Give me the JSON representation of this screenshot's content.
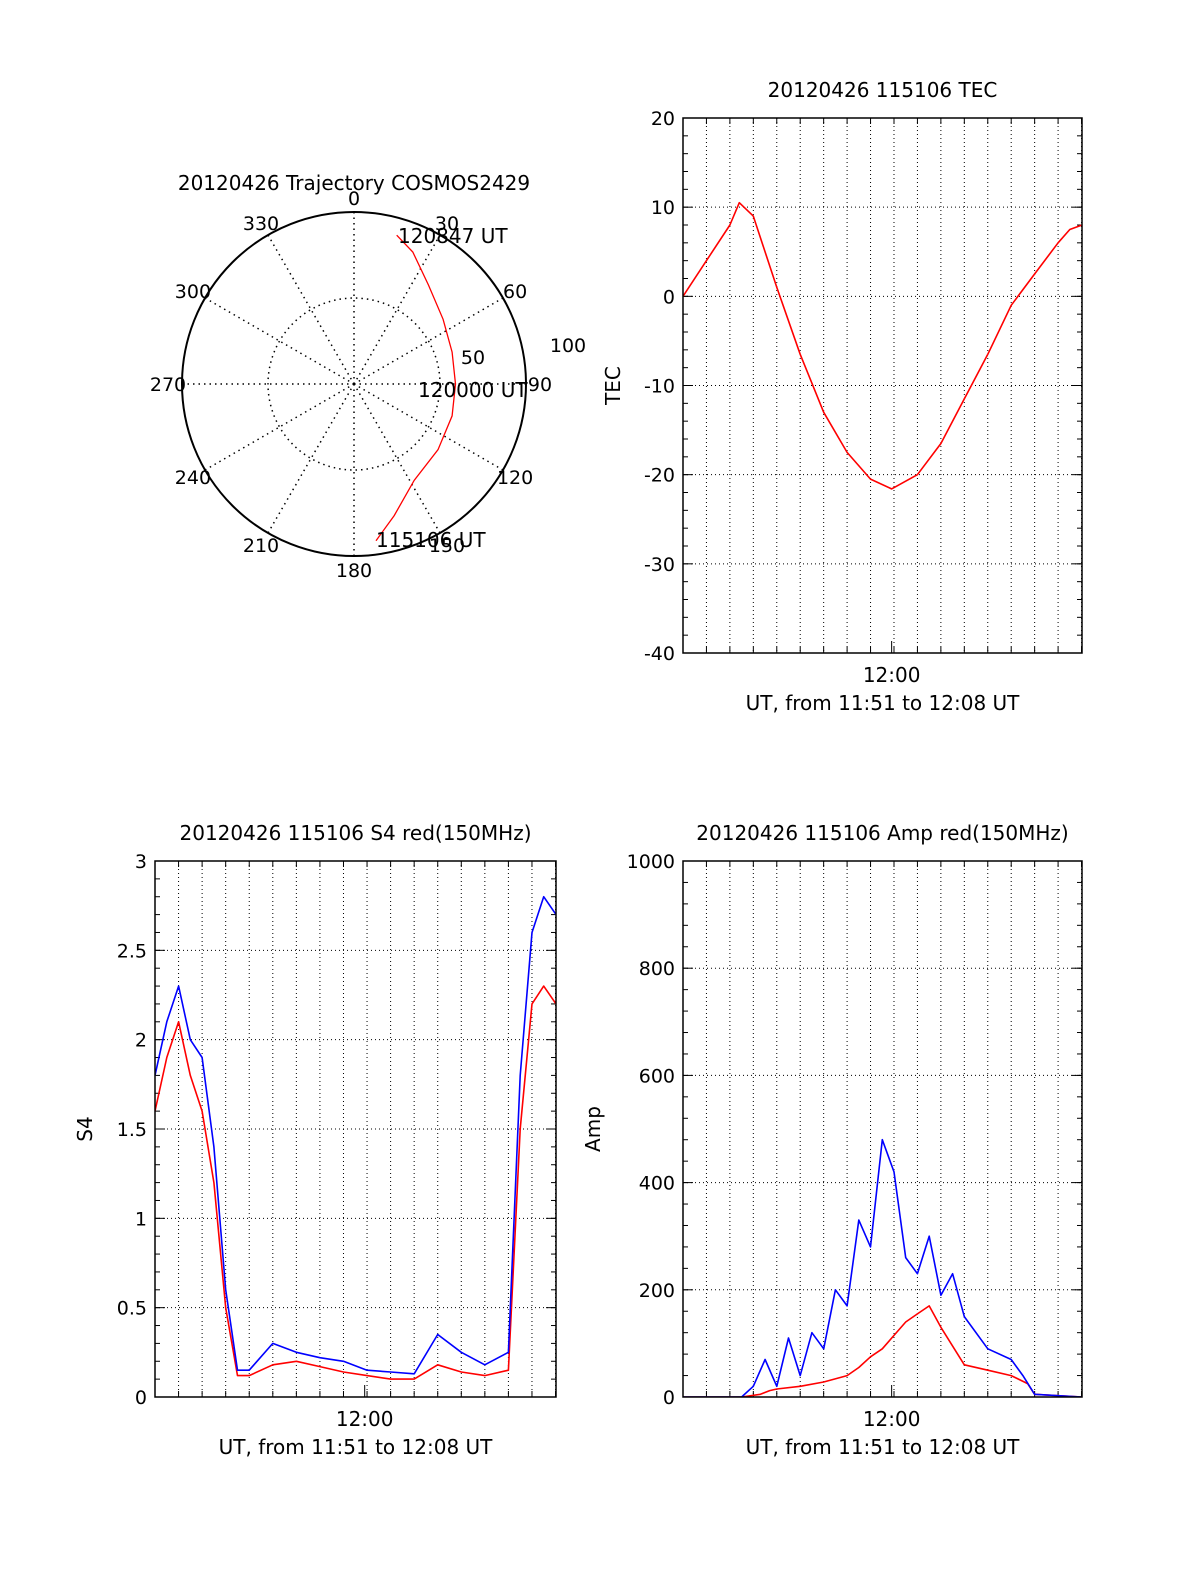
{
  "colors": {
    "red": "#ff0000",
    "blue": "#0000ff",
    "axis": "#000000",
    "grid": "#000000",
    "background": "#ffffff"
  },
  "polar": {
    "title": "20120426 Trajectory COSMOS2429",
    "azimuth_labels": [
      "0",
      "30",
      "60",
      "90",
      "120",
      "150",
      "180",
      "210",
      "240",
      "270",
      "300",
      "330"
    ],
    "radius_labels": [
      "50",
      "100"
    ],
    "time_labels": {
      "start": "115106 UT",
      "middle": "120000 UT",
      "end": "120847 UT"
    }
  },
  "chart_data": [
    {
      "type": "polar",
      "title": "20120426 Trajectory COSMOS2429",
      "r_max": 100,
      "rings": [
        50,
        100
      ],
      "spokes_deg": [
        0,
        30,
        60,
        90,
        120,
        150,
        180,
        210,
        240,
        270,
        300,
        330
      ],
      "series": [
        {
          "color": "red",
          "points": [
            {
              "azimuth": 172,
              "zenith": 92
            },
            {
              "azimuth": 163,
              "zenith": 80
            },
            {
              "azimuth": 148,
              "zenith": 66
            },
            {
              "azimuth": 128,
              "zenith": 62
            },
            {
              "azimuth": 108,
              "zenith": 60
            },
            {
              "azimuth": 90,
              "zenith": 59
            },
            {
              "azimuth": 72,
              "zenith": 60
            },
            {
              "azimuth": 54,
              "zenith": 64
            },
            {
              "azimuth": 37,
              "zenith": 72
            },
            {
              "azimuth": 24,
              "zenith": 84
            },
            {
              "azimuth": 16,
              "zenith": 90
            }
          ]
        }
      ]
    },
    {
      "type": "line",
      "title": "20120426 115106 TEC",
      "ylabel": "TEC",
      "xlabel": "UT, from 11:51 to 12:08 UT",
      "xtick_label": "12:00",
      "xlim": [
        0,
        17.02
      ],
      "ylim": [
        -40,
        20
      ],
      "yticks": [
        20,
        10,
        0,
        -10,
        -20,
        -30,
        -40
      ],
      "grid": true,
      "series": [
        {
          "color": "red",
          "x": [
            0,
            1,
            2,
            2.4,
            3,
            4,
            5,
            6,
            7,
            8,
            8.9,
            10,
            11,
            12,
            13,
            14,
            15,
            16,
            16.5,
            17.02
          ],
          "y": [
            0,
            4,
            8,
            10.5,
            9,
            1,
            -6.5,
            -13,
            -17.5,
            -20.5,
            -21.6,
            -20,
            -16.5,
            -11.5,
            -6.5,
            -1,
            2.5,
            6,
            7.5,
            8
          ]
        }
      ]
    },
    {
      "type": "line",
      "title": "20120426 115106 S4 red(150MHz)",
      "ylabel": "S4",
      "xlabel": "UT, from 11:51 to 12:08 UT",
      "xtick_label": "12:00",
      "xlim": [
        0,
        17.02
      ],
      "ylim": [
        0,
        3
      ],
      "yticks": [
        3,
        2.5,
        2,
        1.5,
        1,
        0.5,
        0
      ],
      "grid": true,
      "series": [
        {
          "color": "red",
          "x": [
            0,
            0.5,
            1,
            1.5,
            2,
            2.5,
            3,
            3.5,
            4,
            5,
            6,
            7,
            8,
            9,
            10,
            11,
            12,
            13,
            14,
            15,
            15.5,
            16,
            16.5,
            17.02
          ],
          "y": [
            1.6,
            1.9,
            2.1,
            1.8,
            1.6,
            1.2,
            0.5,
            0.12,
            0.12,
            0.18,
            0.2,
            0.17,
            0.14,
            0.12,
            0.1,
            0.1,
            0.18,
            0.14,
            0.12,
            0.15,
            1.5,
            2.2,
            2.3,
            2.2
          ]
        },
        {
          "color": "blue",
          "x": [
            0,
            0.5,
            1,
            1.5,
            2,
            2.5,
            3,
            3.5,
            4,
            5,
            6,
            7,
            8,
            9,
            10,
            11,
            12,
            13,
            14,
            15,
            15.5,
            16,
            16.5,
            17.02
          ],
          "y": [
            1.8,
            2.1,
            2.3,
            2.0,
            1.9,
            1.4,
            0.6,
            0.15,
            0.15,
            0.3,
            0.25,
            0.22,
            0.2,
            0.15,
            0.14,
            0.13,
            0.35,
            0.25,
            0.18,
            0.25,
            1.8,
            2.6,
            2.8,
            2.7
          ]
        }
      ]
    },
    {
      "type": "line",
      "title": "20120426 115106 Amp red(150MHz)",
      "ylabel": "Amp",
      "xlabel": "UT, from 11:51 to 12:08 UT",
      "xtick_label": "12:00",
      "xlim": [
        0,
        17.02
      ],
      "ylim": [
        0,
        1000
      ],
      "yticks": [
        1000,
        800,
        600,
        400,
        200,
        0
      ],
      "grid": true,
      "series": [
        {
          "color": "red",
          "x": [
            0,
            2.5,
            3.3,
            3.7,
            4,
            5,
            6,
            7,
            7.5,
            8,
            8.5,
            9,
            9.5,
            10,
            10.5,
            11,
            12,
            13,
            14,
            14.7,
            15,
            17.02
          ],
          "y": [
            0,
            0,
            5,
            12,
            15,
            20,
            28,
            40,
            55,
            75,
            90,
            115,
            140,
            155,
            170,
            130,
            60,
            50,
            40,
            25,
            5,
            0
          ]
        },
        {
          "color": "blue",
          "x": [
            0,
            2.5,
            3,
            3.5,
            4,
            4.5,
            5,
            5.5,
            6,
            6.5,
            7,
            7.5,
            8,
            8.5,
            9,
            9.5,
            10,
            10.5,
            11,
            11.5,
            12,
            13,
            14,
            14.5,
            15,
            17.02
          ],
          "y": [
            0,
            0,
            20,
            70,
            20,
            110,
            40,
            120,
            90,
            200,
            170,
            330,
            280,
            480,
            420,
            260,
            230,
            300,
            190,
            230,
            150,
            90,
            70,
            40,
            5,
            0
          ]
        }
      ]
    }
  ]
}
